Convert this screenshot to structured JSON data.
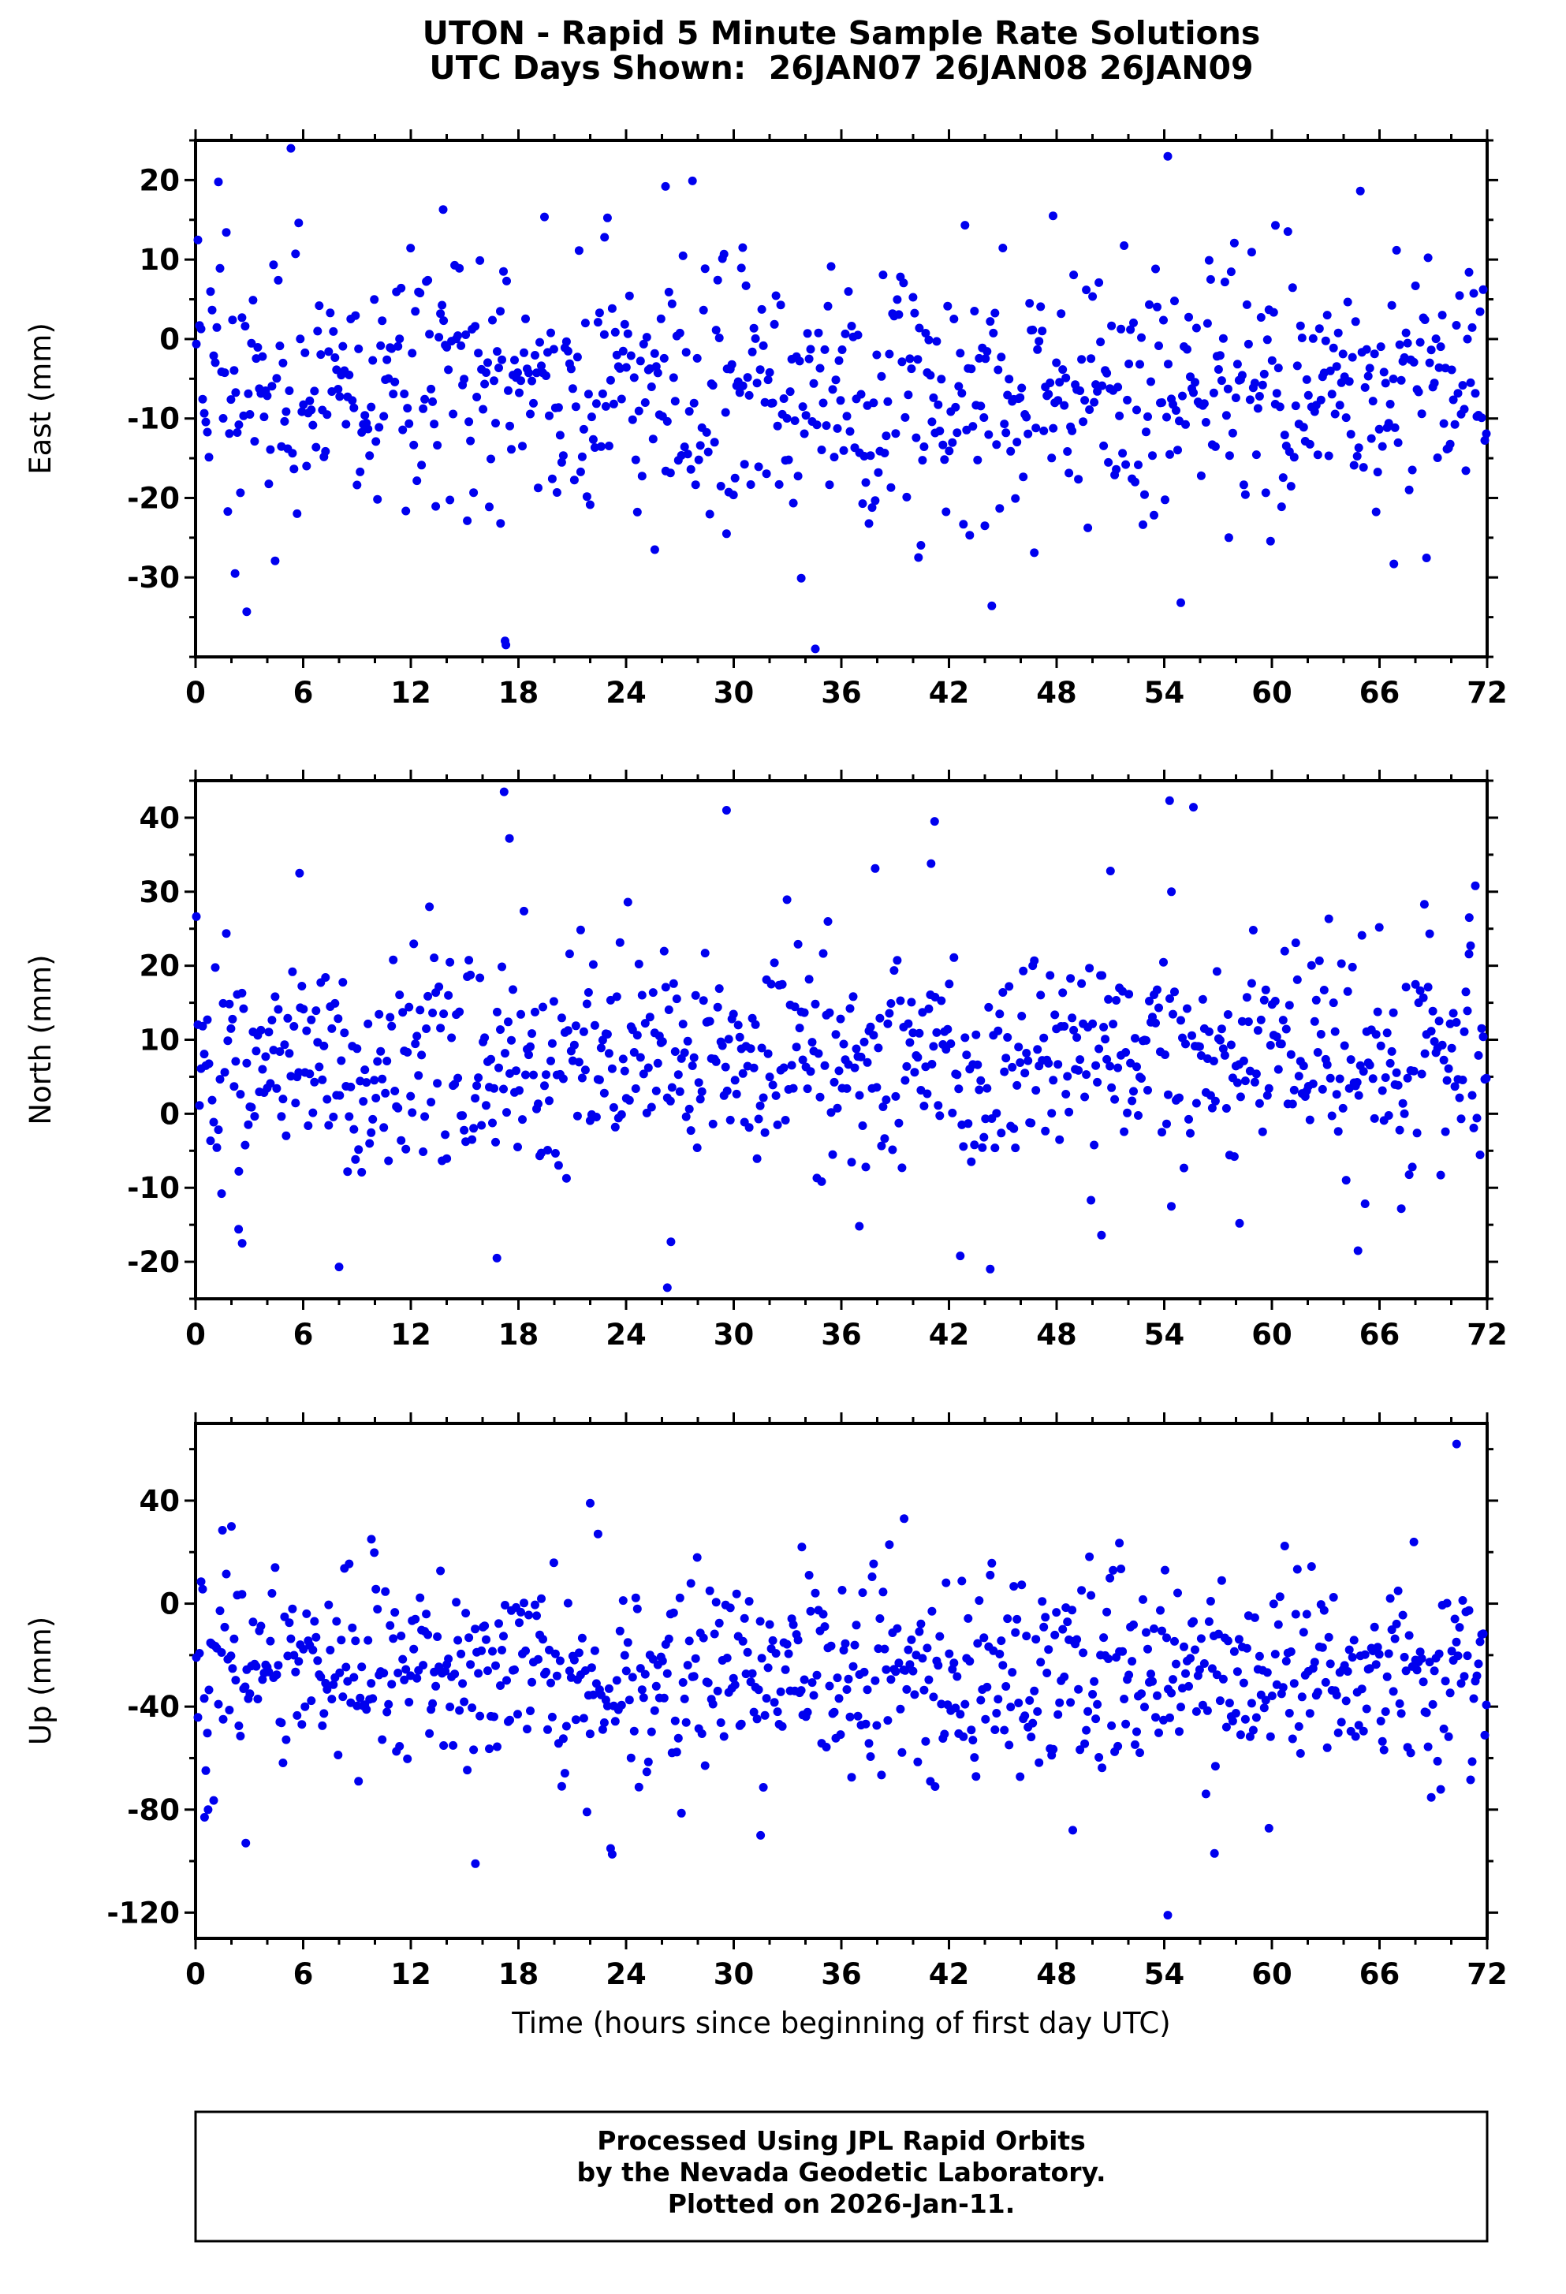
{
  "title": {
    "line1": "UTON - Rapid 5 Minute Sample Rate Solutions",
    "line2": "UTC Days Shown:  26JAN07 26JAN08 26JAN09"
  },
  "xlabel": "Time (hours since beginning of first day UTC)",
  "footer": {
    "lines": [
      "Processed Using JPL Rapid Orbits",
      "by the Nevada Geodetic Laboratory.",
      "Plotted on 2026-Jan-11."
    ]
  },
  "colors": {
    "marker": "#0000ee",
    "axis": "#000000",
    "background": "#ffffff"
  },
  "chart_data": [
    {
      "type": "scatter",
      "name": "east",
      "ylabel": "East (mm)",
      "xlim": [
        0,
        72
      ],
      "ylim": [
        -40,
        25
      ],
      "xticks": [
        0,
        6,
        12,
        18,
        24,
        30,
        36,
        42,
        48,
        54,
        60,
        66,
        72
      ],
      "xminor_step": 2,
      "yticks": [
        20,
        10,
        0,
        -10,
        -20,
        -30
      ],
      "yminor_step": 5,
      "scatter": {
        "n": 820,
        "mean": -6.5,
        "std": 7.8,
        "wide_frac": 0.05,
        "wide_mult": 1.8,
        "seed": 20070126
      },
      "outliers": [
        [
          17.3,
          -38.5
        ],
        [
          2.2,
          -29.5
        ],
        [
          54.2,
          23.0
        ],
        [
          26.2,
          19.2
        ],
        [
          13.8,
          16.3
        ],
        [
          47.8,
          15.5
        ],
        [
          60.2,
          14.3
        ],
        [
          22.8,
          12.8
        ],
        [
          30.5,
          11.5
        ],
        [
          40.3,
          -27.5
        ],
        [
          25.6,
          -26.5
        ],
        [
          66.8,
          -28.3
        ],
        [
          57.6,
          -25.0
        ],
        [
          29.6,
          -24.5
        ],
        [
          17.0,
          -23.2
        ],
        [
          44.0,
          -23.5
        ]
      ]
    },
    {
      "type": "scatter",
      "name": "north",
      "ylabel": "North (mm)",
      "xlim": [
        0,
        72
      ],
      "ylim": [
        -25,
        45
      ],
      "xticks": [
        0,
        6,
        12,
        18,
        24,
        30,
        36,
        42,
        48,
        54,
        60,
        66,
        72
      ],
      "xminor_step": 2,
      "yticks": [
        40,
        30,
        20,
        10,
        0,
        -10,
        -20
      ],
      "yminor_step": 5,
      "scatter": {
        "n": 820,
        "mean": 7.5,
        "std": 7.2,
        "wide_frac": 0.05,
        "wide_mult": 1.8,
        "seed": 20080126
      },
      "outliers": [
        [
          17.2,
          43.5
        ],
        [
          54.3,
          42.3
        ],
        [
          29.6,
          41.0
        ],
        [
          41.2,
          39.5
        ],
        [
          17.5,
          37.2
        ],
        [
          41.0,
          33.8
        ],
        [
          51.0,
          32.8
        ],
        [
          5.8,
          32.5
        ],
        [
          54.4,
          30.0
        ],
        [
          68.5,
          28.3
        ],
        [
          71.0,
          26.5
        ],
        [
          26.3,
          -23.5
        ],
        [
          8.0,
          -20.7
        ],
        [
          16.8,
          -19.5
        ],
        [
          2.6,
          -17.5
        ],
        [
          26.5,
          -17.3
        ],
        [
          64.8,
          -18.5
        ],
        [
          2.4,
          -15.6
        ],
        [
          50.5,
          -16.4
        ],
        [
          37.0,
          -15.2
        ],
        [
          58.2,
          -14.8
        ]
      ]
    },
    {
      "type": "scatter",
      "name": "up",
      "ylabel": "Up (mm)",
      "xlim": [
        0,
        72
      ],
      "ylim": [
        -130,
        70
      ],
      "xticks": [
        0,
        6,
        12,
        18,
        24,
        30,
        36,
        42,
        48,
        54,
        60,
        66,
        72
      ],
      "xminor_step": 2,
      "yticks": [
        40,
        0,
        -40,
        -80,
        -120
      ],
      "yminor_step": 20,
      "scatter": {
        "n": 820,
        "mean": -27,
        "std": 19,
        "wide_frac": 0.06,
        "wide_mult": 1.8,
        "seed": 20090126
      },
      "outliers": [
        [
          70.3,
          62.0
        ],
        [
          54.2,
          -121.0
        ],
        [
          15.6,
          -101.0
        ],
        [
          56.8,
          -97.0
        ],
        [
          2.8,
          -93.0
        ],
        [
          31.5,
          -90.0
        ],
        [
          48.9,
          -88.0
        ],
        [
          0.5,
          -83.0
        ],
        [
          0.7,
          -80.0
        ],
        [
          22.0,
          39.0
        ],
        [
          39.5,
          33.0
        ],
        [
          2.0,
          30.0
        ],
        [
          1.5,
          28.5
        ],
        [
          9.8,
          25.0
        ],
        [
          33.8,
          22.0
        ],
        [
          51.5,
          23.5
        ]
      ]
    }
  ]
}
